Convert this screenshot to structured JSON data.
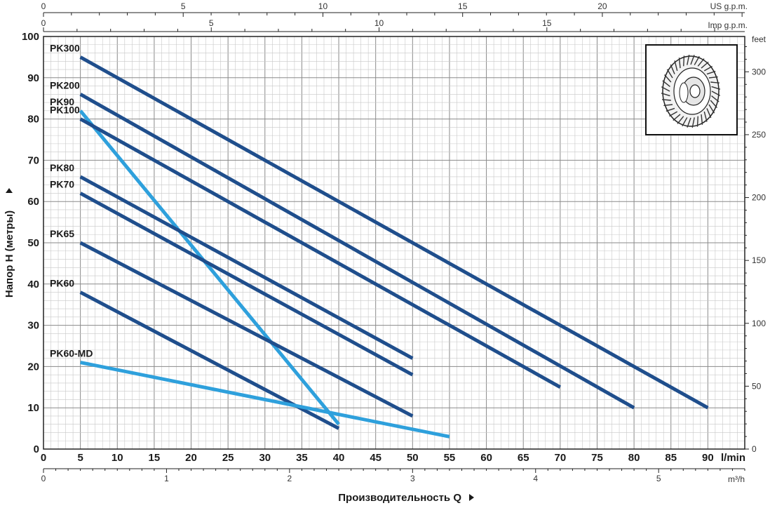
{
  "chart_data": {
    "type": "line",
    "xlabel": "Производительность Q",
    "ylabel": "Напор H (метры)",
    "xlim": [
      0,
      95
    ],
    "ylim": [
      0,
      100
    ],
    "x_ticks": [
      0,
      5,
      10,
      15,
      20,
      25,
      30,
      35,
      40,
      45,
      50,
      55,
      60,
      65,
      70,
      75,
      80,
      85,
      90
    ],
    "x_unit": "l/min",
    "y_ticks": [
      0,
      10,
      20,
      30,
      40,
      50,
      60,
      70,
      80,
      90,
      100
    ],
    "grid": true,
    "secondary_axes": {
      "us_gpm": {
        "unit": "US g.p.m.",
        "ticks": [
          0,
          5,
          10,
          15,
          20
        ]
      },
      "imp_gpm": {
        "unit": "Imp g.p.m.",
        "ticks": [
          0,
          5,
          10,
          15
        ]
      },
      "m3h": {
        "unit": "m³/h",
        "ticks": [
          0,
          1,
          2,
          3,
          4,
          5
        ]
      },
      "feet": {
        "unit": "feet",
        "ticks": [
          0,
          50,
          100,
          150,
          200,
          250,
          300
        ]
      }
    },
    "series": [
      {
        "name": "PK300",
        "x": [
          5,
          90
        ],
        "y": [
          95,
          10
        ],
        "color": "#1f4e8c"
      },
      {
        "name": "PK200",
        "x": [
          5,
          80
        ],
        "y": [
          86,
          10
        ],
        "color": "#1f4e8c"
      },
      {
        "name": "PK90",
        "x": [
          5,
          40
        ],
        "y": [
          82,
          6
        ],
        "color": "#2ea0dc"
      },
      {
        "name": "PK100",
        "x": [
          5,
          70
        ],
        "y": [
          80,
          15
        ],
        "color": "#1f4e8c"
      },
      {
        "name": "PK80",
        "x": [
          5,
          50
        ],
        "y": [
          66,
          22
        ],
        "color": "#1f4e8c"
      },
      {
        "name": "PK70",
        "x": [
          5,
          50
        ],
        "y": [
          62,
          18
        ],
        "color": "#1f4e8c"
      },
      {
        "name": "PK65",
        "x": [
          5,
          50
        ],
        "y": [
          50,
          8
        ],
        "color": "#1f4e8c"
      },
      {
        "name": "PK60",
        "x": [
          5,
          40
        ],
        "y": [
          38,
          5
        ],
        "color": "#1f4e8c"
      },
      {
        "name": "PK60-MD",
        "x": [
          5,
          55
        ],
        "y": [
          21,
          3
        ],
        "color": "#2ea0dc"
      }
    ]
  },
  "icons": {
    "impeller": "impeller-icon",
    "arrow": "triangle-right-icon"
  }
}
